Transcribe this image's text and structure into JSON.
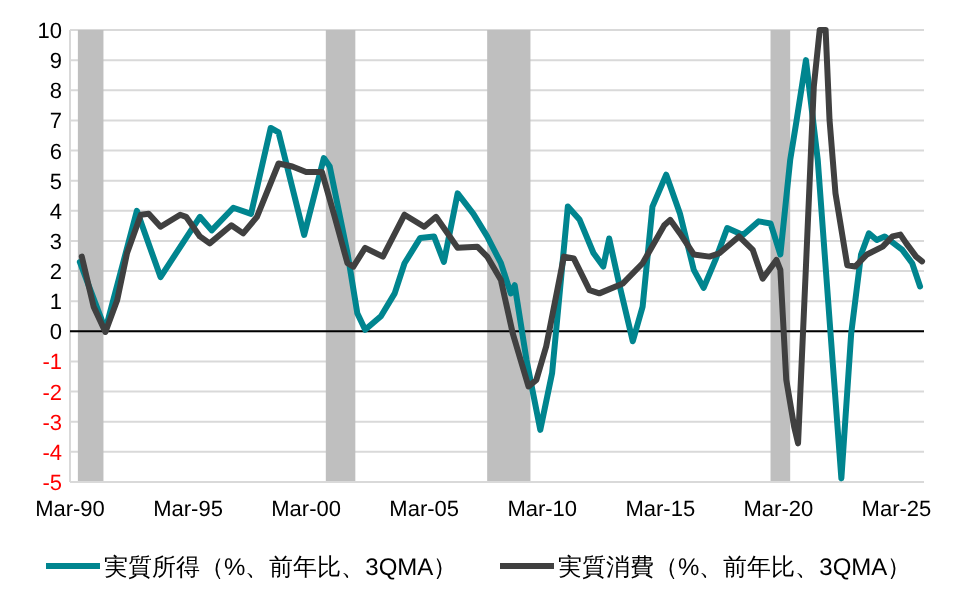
{
  "chart_data": {
    "type": "line",
    "xlim": [
      "1990-03",
      "2026-05"
    ],
    "ylim": [
      -5,
      10
    ],
    "xticks": [
      {
        "value": "1990-03",
        "label": "Mar-90"
      },
      {
        "value": "1995-03",
        "label": "Mar-95"
      },
      {
        "value": "2000-03",
        "label": "Mar-00"
      },
      {
        "value": "2005-03",
        "label": "Mar-05"
      },
      {
        "value": "2010-03",
        "label": "Mar-10"
      },
      {
        "value": "2015-03",
        "label": "Mar-15"
      },
      {
        "value": "2020-03",
        "label": "Mar-20"
      },
      {
        "value": "2025-03",
        "label": "Mar-25"
      }
    ],
    "yticks": [
      -5,
      -4,
      -3,
      -2,
      -1,
      0,
      1,
      2,
      3,
      4,
      5,
      6,
      7,
      8,
      9,
      10
    ],
    "grid": "y",
    "legend": "bottom",
    "line_style": "solid",
    "marker": "none",
    "bands": [
      {
        "axis": "x",
        "from": "1990-07",
        "to": "1991-08",
        "color": "#bfbfbf"
      },
      {
        "axis": "x",
        "from": "2001-01",
        "to": "2002-04",
        "color": "#bfbfbf"
      },
      {
        "axis": "x",
        "from": "2007-11",
        "to": "2009-09",
        "color": "#bfbfbf"
      },
      {
        "axis": "x",
        "from": "2019-11",
        "to": "2020-09",
        "color": "#bfbfbf"
      }
    ],
    "ref_lines": [
      {
        "axis": "y",
        "value": 0,
        "color": "#000000"
      }
    ],
    "series": [
      {
        "name": "実質所得（%、前年比、3QMA）",
        "color": "#00858f",
        "x": [
          "1990-08",
          "1991-09",
          "1993-01",
          "1994-01",
          "1995-09",
          "1996-03",
          "1997-02",
          "1997-11",
          "1998-09",
          "1999-01",
          "2000-02",
          "2000-12",
          "2001-03",
          "2001-12",
          "2002-05",
          "2002-09",
          "2003-05",
          "2003-12",
          "2004-05",
          "2005-01",
          "2005-08",
          "2006-01",
          "2006-08",
          "2007-04",
          "2007-11",
          "2008-06",
          "2008-11",
          "2009-01",
          "2009-07",
          "2010-02",
          "2010-08",
          "2011-04",
          "2011-10",
          "2012-05",
          "2012-10",
          "2013-01",
          "2013-06",
          "2014-01",
          "2014-06",
          "2014-11",
          "2015-06",
          "2016-01",
          "2016-08",
          "2017-01",
          "2017-07",
          "2018-01",
          "2018-09",
          "2019-05",
          "2019-11",
          "2020-04",
          "2020-09",
          "2020-12",
          "2021-05",
          "2021-11",
          "2022-05",
          "2022-11",
          "2023-04",
          "2023-09",
          "2024-01",
          "2024-05",
          "2024-09",
          "2025-06",
          "2025-11",
          "2026-03"
        ],
        "values": [
          2.3,
          0.05,
          4.0,
          1.8,
          3.8,
          3.35,
          4.1,
          3.9,
          6.75,
          6.6,
          3.2,
          5.75,
          5.47,
          2.6,
          0.6,
          0.05,
          0.5,
          1.26,
          2.26,
          3.1,
          3.15,
          2.3,
          4.58,
          3.9,
          3.15,
          2.26,
          1.26,
          1.53,
          -0.95,
          -3.27,
          -1.39,
          4.14,
          3.7,
          2.6,
          2.15,
          3.08,
          1.6,
          -0.33,
          0.82,
          4.14,
          5.2,
          3.9,
          2.04,
          1.44,
          2.37,
          3.43,
          3.2,
          3.65,
          3.58,
          2.55,
          5.69,
          6.9,
          9.0,
          5.69,
          0.38,
          -4.88,
          -0.07,
          2.55,
          3.25,
          3.03,
          3.15,
          2.7,
          2.26,
          1.49
        ]
      },
      {
        "name": "実質消費（%、前年比、3QMA）",
        "color": "#404040",
        "x": [
          "1990-09",
          "1991-03",
          "1991-09",
          "1992-03",
          "1992-08",
          "1993-03",
          "1993-07",
          "1994-01",
          "1994-11",
          "1995-02",
          "1995-09",
          "1996-02",
          "1997-01",
          "1997-07",
          "1998-02",
          "1999-01",
          "1999-08",
          "2000-03",
          "2000-11",
          "2001-05",
          "2001-12",
          "2002-03",
          "2002-09",
          "2003-06",
          "2004-05",
          "2005-03",
          "2005-09",
          "2006-04",
          "2006-08",
          "2007-06",
          "2007-11",
          "2008-06",
          "2008-12",
          "2009-08",
          "2009-12",
          "2010-05",
          "2011-02",
          "2011-07",
          "2012-03",
          "2012-08",
          "2013-08",
          "2014-06",
          "2015-05",
          "2015-08",
          "2016-01",
          "2016-08",
          "2017-04",
          "2017-09",
          "2018-07",
          "2019-02",
          "2019-07",
          "2020-02",
          "2020-04",
          "2020-07",
          "2020-11",
          "2021-01",
          "2021-05",
          "2021-09",
          "2021-12",
          "2022-03",
          "2022-05",
          "2022-08",
          "2023-02",
          "2023-06",
          "2023-12",
          "2024-08",
          "2025-01",
          "2025-05",
          "2025-08",
          "2026-01",
          "2026-04"
        ],
        "values": [
          2.48,
          0.82,
          -0.02,
          1.04,
          2.6,
          3.87,
          3.9,
          3.47,
          3.87,
          3.8,
          3.15,
          2.92,
          3.52,
          3.25,
          3.8,
          5.57,
          5.47,
          5.29,
          5.29,
          3.92,
          2.26,
          2.15,
          2.77,
          2.48,
          3.87,
          3.47,
          3.8,
          3.15,
          2.77,
          2.81,
          2.48,
          1.7,
          -0.07,
          -1.83,
          -1.61,
          -0.5,
          2.48,
          2.42,
          1.37,
          1.26,
          1.59,
          2.26,
          3.52,
          3.7,
          3.25,
          2.55,
          2.48,
          2.59,
          3.15,
          2.7,
          1.75,
          2.37,
          2.04,
          -1.61,
          -3.16,
          -3.72,
          2.15,
          8.12,
          10,
          10,
          7.01,
          4.58,
          2.19,
          2.15,
          2.55,
          2.81,
          3.15,
          3.21,
          2.92,
          2.48,
          2.32
        ]
      }
    ]
  }
}
